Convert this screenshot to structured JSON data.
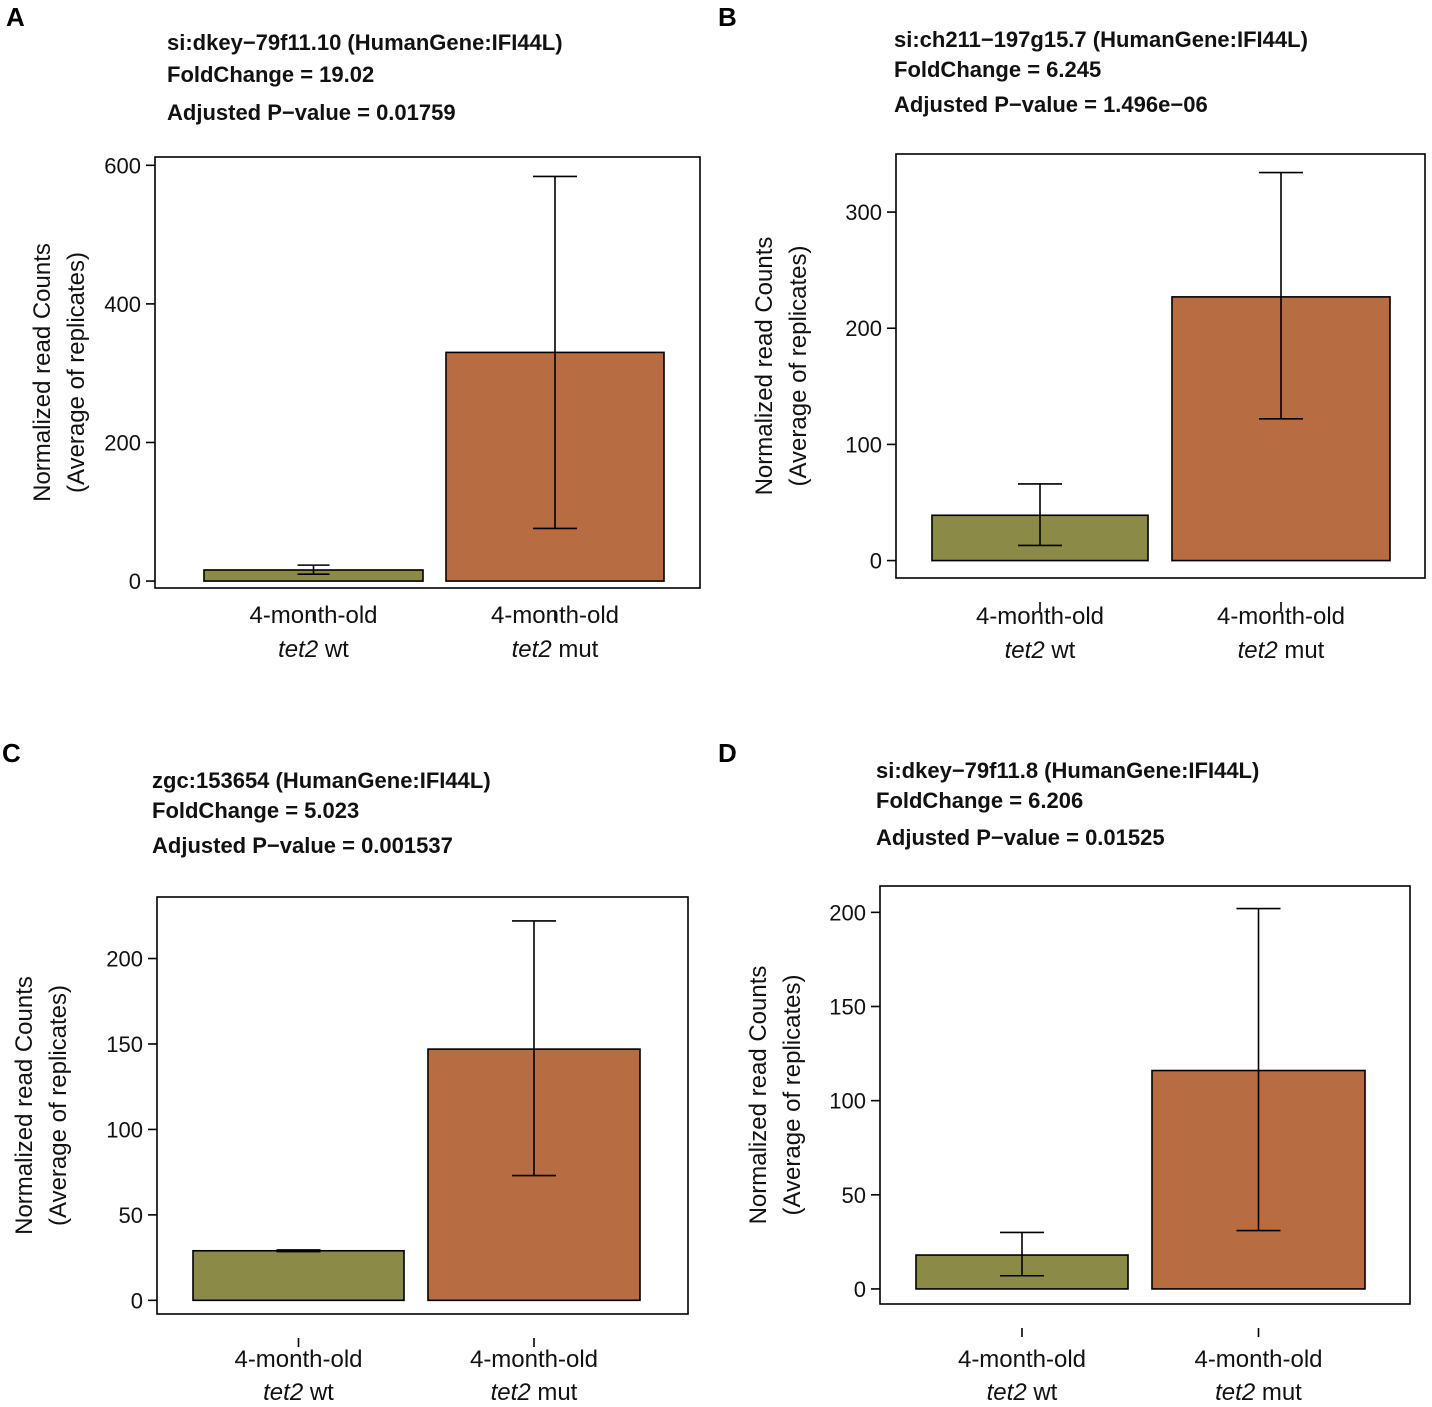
{
  "figure": {
    "colors": {
      "wt": "#8b8a46",
      "mut": "#b76c42"
    },
    "ylabel_line1": "Normalized read Counts",
    "ylabel_line2": "(Average of replicates)"
  },
  "chart_data": [
    {
      "panel": "A",
      "type": "bar",
      "header": {
        "gene": "si:dkey−79f11.10 (HumanGene:IFI44L)",
        "fold_change": "FoldChange = 19.02",
        "p_value": "Adjusted P−value = 0.01759"
      },
      "categories": [
        {
          "line1": "4-month-old",
          "gene": "tet2",
          "genotype": "wt"
        },
        {
          "line1": "4-month-old",
          "gene": "tet2",
          "genotype": "mut"
        }
      ],
      "values": [
        16,
        330
      ],
      "error_bars": [
        [
          10,
          23
        ],
        [
          76,
          584
        ]
      ],
      "ylim": [
        -10,
        612
      ],
      "yticks": [
        0,
        200,
        400,
        600
      ],
      "ytick_labels": [
        "0",
        "200",
        "400",
        "600"
      ]
    },
    {
      "panel": "B",
      "type": "bar",
      "header": {
        "gene": "si:ch211−197g15.7 (HumanGene:IFI44L)",
        "fold_change": "FoldChange = 6.245",
        "p_value": "Adjusted P−value = 1.496e−06"
      },
      "categories": [
        {
          "line1": "4-month-old",
          "gene": "tet2",
          "genotype": "wt"
        },
        {
          "line1": "4-month-old",
          "gene": "tet2",
          "genotype": "mut"
        }
      ],
      "values": [
        39,
        227
      ],
      "error_bars": [
        [
          13,
          66
        ],
        [
          122,
          334
        ]
      ],
      "ylim": [
        -15,
        350
      ],
      "yticks": [
        0,
        100,
        200,
        300
      ],
      "ytick_labels": [
        "0",
        "100",
        "200",
        "300"
      ]
    },
    {
      "panel": "C",
      "type": "bar",
      "header": {
        "gene": "zgc:153654 (HumanGene:IFI44L)",
        "fold_change": "FoldChange = 5.023",
        "p_value": "Adjusted P−value = 0.001537"
      },
      "categories": [
        {
          "line1": "4-month-old",
          "gene": "tet2",
          "genotype": "wt"
        },
        {
          "line1": "4-month-old",
          "gene": "tet2",
          "genotype": "mut"
        }
      ],
      "values": [
        29,
        147
      ],
      "error_bars": [
        [
          28.5,
          29.5
        ],
        [
          73,
          222
        ]
      ],
      "ylim": [
        -8,
        236
      ],
      "yticks": [
        0,
        50,
        100,
        150,
        200
      ],
      "ytick_labels": [
        "0",
        "50",
        "100",
        "150",
        "200"
      ]
    },
    {
      "panel": "D",
      "type": "bar",
      "header": {
        "gene": "si:dkey−79f11.8 (HumanGene:IFI44L)",
        "fold_change": "FoldChange = 6.206",
        "p_value": "Adjusted P−value = 0.01525"
      },
      "categories": [
        {
          "line1": "4-month-old",
          "gene": "tet2",
          "genotype": "wt"
        },
        {
          "line1": "4-month-old",
          "gene": "tet2",
          "genotype": "mut"
        }
      ],
      "values": [
        18,
        116
      ],
      "error_bars": [
        [
          7,
          30
        ],
        [
          31,
          202
        ]
      ],
      "ylim": [
        -8,
        214
      ],
      "yticks": [
        0,
        50,
        100,
        150,
        200
      ],
      "ytick_labels": [
        "0",
        "50",
        "100",
        "150",
        "200"
      ]
    }
  ]
}
